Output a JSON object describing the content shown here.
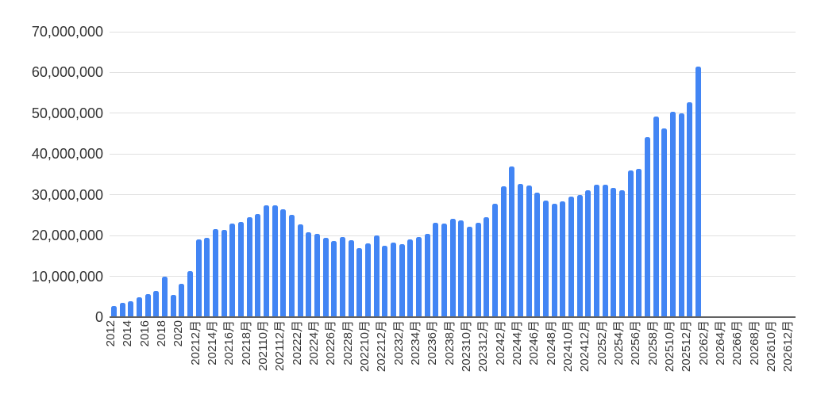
{
  "page": {
    "background": "#ffffff"
  },
  "chart_data": {
    "type": "bar",
    "title": "",
    "legend": "none",
    "grid": true,
    "bar_color": "#4285f4",
    "gridline_color": "#e0e0e0",
    "axis_line_color": "#636363",
    "label_color": "#333333",
    "y_axis": {
      "min": 0,
      "max": 70000000,
      "tick_step": 10000000,
      "tick_labels": [
        "0",
        "10,000,000",
        "20,000,000",
        "30,000,000",
        "40,000,000",
        "50,000,000",
        "60,000,000",
        "70,000,000"
      ]
    },
    "x_axis": {
      "total_slots": 81,
      "label_every_n_slots": 2,
      "label_rotation_deg": 90,
      "tick_labels": [
        "2012",
        "2014",
        "2016",
        "2018",
        "2020",
        "20212月",
        "20214月",
        "20216月",
        "20218月",
        "202110月",
        "202112月",
        "20222月",
        "20224月",
        "20226月",
        "20228月",
        "202210月",
        "202212月",
        "20232月",
        "20234月",
        "20236月",
        "20238月",
        "202310月",
        "202312月",
        "20242月",
        "20244月",
        "20246月",
        "20248月",
        "202410月",
        "202412月",
        "20252月",
        "20254月",
        "20256月",
        "20258月",
        "202510月",
        "202512月",
        "20262月",
        "20264月",
        "20266月",
        "20268月",
        "202610月",
        "202612月"
      ]
    },
    "values": [
      2800000,
      3500000,
      3800000,
      4900000,
      5600000,
      6500000,
      10000000,
      5500000,
      8200000,
      11200000,
      19100000,
      19500000,
      21600000,
      21300000,
      23000000,
      23300000,
      24500000,
      25200000,
      27400000,
      27500000,
      26500000,
      25100000,
      22800000,
      20800000,
      20400000,
      19500000,
      18700000,
      19600000,
      18900000,
      17000000,
      18100000,
      20100000,
      17500000,
      18300000,
      17900000,
      19000000,
      19700000,
      20500000,
      23200000,
      23000000,
      24100000,
      23700000,
      22100000,
      23100000,
      24500000,
      27900000,
      32000000,
      37000000,
      32600000,
      32200000,
      30500000,
      28600000,
      27800000,
      28400000,
      29500000,
      29900000,
      31200000,
      32400000,
      32400000,
      31700000,
      31200000,
      36000000,
      36400000,
      44200000,
      49100000,
      46200000,
      50400000,
      50000000,
      52600000,
      61400000
    ]
  }
}
